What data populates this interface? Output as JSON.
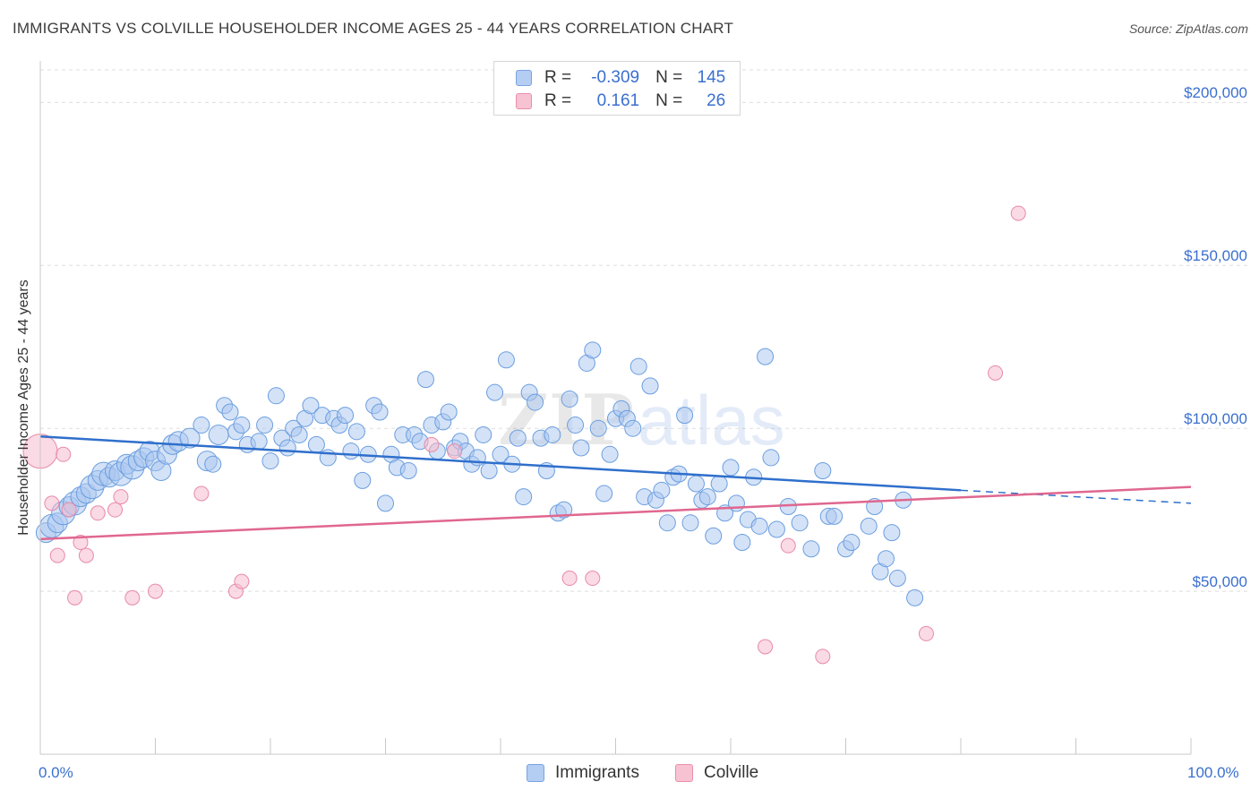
{
  "title": "IMMIGRANTS VS COLVILLE HOUSEHOLDER INCOME AGES 25 - 44 YEARS CORRELATION CHART",
  "source": "Source: ZipAtlas.com",
  "legend": {
    "row1": {
      "r_label": "R =",
      "r_value": "-0.309",
      "n_label": "N =",
      "n_value": "145"
    },
    "row2": {
      "r_label": "R =",
      "r_value": "0.161",
      "n_label": "N =",
      "n_value": "26"
    }
  },
  "bottom_legend": {
    "series1": "Immigrants",
    "series2": "Colville"
  },
  "colors": {
    "immigrants_fill": "#a9c6f0",
    "immigrants_stroke": "#6a9ee0",
    "immigrants_line": "#2f6fcc",
    "colville_fill": "#f6bccd",
    "colville_stroke": "#e88aa8",
    "colville_line": "#e0678f",
    "tick_label": "#3a6fcf"
  },
  "chart_data": {
    "type": "scatter",
    "title": "IMMIGRANTS VS COLVILLE HOUSEHOLDER INCOME AGES 25 - 44 YEARS CORRELATION CHART",
    "xlabel": "",
    "ylabel": "Householder Income Ages 25 - 44 years",
    "xlim": [
      0,
      100
    ],
    "ylim": [
      0,
      210000
    ],
    "x_tick_labels": [
      "0.0%",
      "100.0%"
    ],
    "y_ticks": [
      50000,
      100000,
      150000,
      200000
    ],
    "y_tick_labels": [
      "$50,000",
      "$100,000",
      "$150,000",
      "$200,000"
    ],
    "grid": true,
    "legend_position": "top-center",
    "watermark": "ZIPatlas",
    "series": [
      {
        "name": "Immigrants",
        "R": -0.309,
        "N": 145,
        "trend": {
          "x": [
            0,
            80
          ],
          "y": [
            97500,
            81000
          ],
          "dashed_to": [
            100,
            77000
          ]
        },
        "points": [
          [
            0.5,
            68000,
            2
          ],
          [
            1,
            70000,
            3
          ],
          [
            1.5,
            71000,
            2
          ],
          [
            2,
            74000,
            3
          ],
          [
            2.5,
            76000,
            2
          ],
          [
            3,
            77000,
            3
          ],
          [
            3.5,
            79000,
            2
          ],
          [
            4,
            80000,
            2
          ],
          [
            4.5,
            82000,
            3
          ],
          [
            5,
            84000,
            2
          ],
          [
            5.5,
            86000,
            3
          ],
          [
            6,
            85000,
            2
          ],
          [
            6.5,
            87000,
            2
          ],
          [
            7,
            86000,
            3
          ],
          [
            7.5,
            89000,
            2
          ],
          [
            8,
            88000,
            3
          ],
          [
            8.5,
            90000,
            2
          ],
          [
            9,
            91000,
            2
          ],
          [
            9.5,
            93000,
            2
          ],
          [
            10,
            90000,
            2
          ],
          [
            10.5,
            87000,
            2
          ],
          [
            11,
            92000,
            2
          ],
          [
            11.5,
            95000,
            2
          ],
          [
            12,
            96000,
            2
          ],
          [
            13,
            97000,
            2
          ],
          [
            14,
            101000,
            1
          ],
          [
            14.5,
            90000,
            2
          ],
          [
            15,
            89000,
            1
          ],
          [
            15.5,
            98000,
            2
          ],
          [
            16,
            107000,
            1
          ],
          [
            16.5,
            105000,
            1
          ],
          [
            17,
            99000,
            1
          ],
          [
            17.5,
            101000,
            1
          ],
          [
            18,
            95000,
            1
          ],
          [
            19,
            96000,
            1
          ],
          [
            19.5,
            101000,
            1
          ],
          [
            20,
            90000,
            1
          ],
          [
            20.5,
            110000,
            1
          ],
          [
            21,
            97000,
            1
          ],
          [
            21.5,
            94000,
            1
          ],
          [
            22,
            100000,
            1
          ],
          [
            22.5,
            98000,
            1
          ],
          [
            23,
            103000,
            1
          ],
          [
            23.5,
            107000,
            1
          ],
          [
            24,
            95000,
            1
          ],
          [
            24.5,
            104000,
            1
          ],
          [
            25,
            91000,
            1
          ],
          [
            25.5,
            103000,
            1
          ],
          [
            26,
            101000,
            1
          ],
          [
            26.5,
            104000,
            1
          ],
          [
            27,
            93000,
            1
          ],
          [
            27.5,
            99000,
            1
          ],
          [
            28,
            84000,
            1
          ],
          [
            28.5,
            92000,
            1
          ],
          [
            29,
            107000,
            1
          ],
          [
            29.5,
            105000,
            1
          ],
          [
            30,
            77000,
            1
          ],
          [
            30.5,
            92000,
            1
          ],
          [
            31,
            88000,
            1
          ],
          [
            31.5,
            98000,
            1
          ],
          [
            32,
            87000,
            1
          ],
          [
            32.5,
            98000,
            1
          ],
          [
            33,
            96000,
            1
          ],
          [
            33.5,
            115000,
            1
          ],
          [
            34,
            101000,
            1
          ],
          [
            34.5,
            93000,
            1
          ],
          [
            35,
            102000,
            1
          ],
          [
            35.5,
            105000,
            1
          ],
          [
            36,
            94000,
            1
          ],
          [
            36.5,
            96000,
            1
          ],
          [
            37,
            93000,
            1
          ],
          [
            37.5,
            89000,
            1
          ],
          [
            38,
            91000,
            1
          ],
          [
            38.5,
            98000,
            1
          ],
          [
            39,
            87000,
            1
          ],
          [
            39.5,
            111000,
            1
          ],
          [
            40,
            92000,
            1
          ],
          [
            40.5,
            121000,
            1
          ],
          [
            41,
            89000,
            1
          ],
          [
            41.5,
            97000,
            1
          ],
          [
            42,
            79000,
            1
          ],
          [
            42.5,
            111000,
            1
          ],
          [
            43,
            108000,
            1
          ],
          [
            43.5,
            97000,
            1
          ],
          [
            44,
            87000,
            1
          ],
          [
            44.5,
            98000,
            1
          ],
          [
            45,
            74000,
            1
          ],
          [
            45.5,
            75000,
            1
          ],
          [
            46,
            109000,
            1
          ],
          [
            46.5,
            101000,
            1
          ],
          [
            47,
            94000,
            1
          ],
          [
            47.5,
            120000,
            1
          ],
          [
            48,
            124000,
            1
          ],
          [
            48.5,
            100000,
            1
          ],
          [
            49,
            80000,
            1
          ],
          [
            49.5,
            92000,
            1
          ],
          [
            50,
            103000,
            1
          ],
          [
            50.5,
            106000,
            1
          ],
          [
            51,
            103000,
            1
          ],
          [
            51.5,
            100000,
            1
          ],
          [
            52,
            119000,
            1
          ],
          [
            52.5,
            79000,
            1
          ],
          [
            53,
            113000,
            1
          ],
          [
            53.5,
            78000,
            1
          ],
          [
            54,
            81000,
            1
          ],
          [
            54.5,
            71000,
            1
          ],
          [
            55,
            85000,
            1
          ],
          [
            55.5,
            86000,
            1
          ],
          [
            56,
            104000,
            1
          ],
          [
            56.5,
            71000,
            1
          ],
          [
            57,
            83000,
            1
          ],
          [
            57.5,
            78000,
            1
          ],
          [
            58,
            79000,
            1
          ],
          [
            58.5,
            67000,
            1
          ],
          [
            59,
            83000,
            1
          ],
          [
            59.5,
            74000,
            1
          ],
          [
            60,
            88000,
            1
          ],
          [
            60.5,
            77000,
            1
          ],
          [
            61,
            65000,
            1
          ],
          [
            61.5,
            72000,
            1
          ],
          [
            62,
            85000,
            1
          ],
          [
            62.5,
            70000,
            1
          ],
          [
            63,
            122000,
            1
          ],
          [
            63.5,
            91000,
            1
          ],
          [
            64,
            69000,
            1
          ],
          [
            65,
            76000,
            1
          ],
          [
            66,
            71000,
            1
          ],
          [
            67,
            63000,
            1
          ],
          [
            68,
            87000,
            1
          ],
          [
            68.5,
            73000,
            1
          ],
          [
            69,
            73000,
            1
          ],
          [
            70,
            63000,
            1
          ],
          [
            70.5,
            65000,
            1
          ],
          [
            72,
            70000,
            1
          ],
          [
            72.5,
            76000,
            1
          ],
          [
            73,
            56000,
            1
          ],
          [
            73.5,
            60000,
            1
          ],
          [
            74,
            68000,
            1
          ],
          [
            74.5,
            54000,
            1
          ],
          [
            75,
            78000,
            1
          ],
          [
            76,
            48000,
            1
          ]
        ]
      },
      {
        "name": "Colville",
        "R": 0.161,
        "N": 26,
        "trend": {
          "x": [
            0,
            100
          ],
          "y": [
            66000,
            82000
          ]
        },
        "points": [
          [
            0,
            93000,
            3
          ],
          [
            1,
            77000,
            1
          ],
          [
            1.5,
            61000,
            1
          ],
          [
            2,
            92000,
            1
          ],
          [
            2.5,
            75000,
            1
          ],
          [
            3,
            48000,
            1
          ],
          [
            3.5,
            65000,
            1
          ],
          [
            4,
            61000,
            1
          ],
          [
            5,
            74000,
            1
          ],
          [
            6.5,
            75000,
            1
          ],
          [
            7,
            79000,
            1
          ],
          [
            8,
            48000,
            1
          ],
          [
            10,
            50000,
            1
          ],
          [
            14,
            80000,
            1
          ],
          [
            17,
            50000,
            1
          ],
          [
            17.5,
            53000,
            1
          ],
          [
            34,
            95000,
            1
          ],
          [
            36,
            93000,
            1
          ],
          [
            46,
            54000,
            1
          ],
          [
            48,
            54000,
            1
          ],
          [
            63,
            33000,
            1
          ],
          [
            65,
            64000,
            1
          ],
          [
            68,
            30000,
            1
          ],
          [
            77,
            37000,
            1
          ],
          [
            83,
            117000,
            1
          ],
          [
            85,
            166000,
            1
          ]
        ]
      }
    ]
  }
}
